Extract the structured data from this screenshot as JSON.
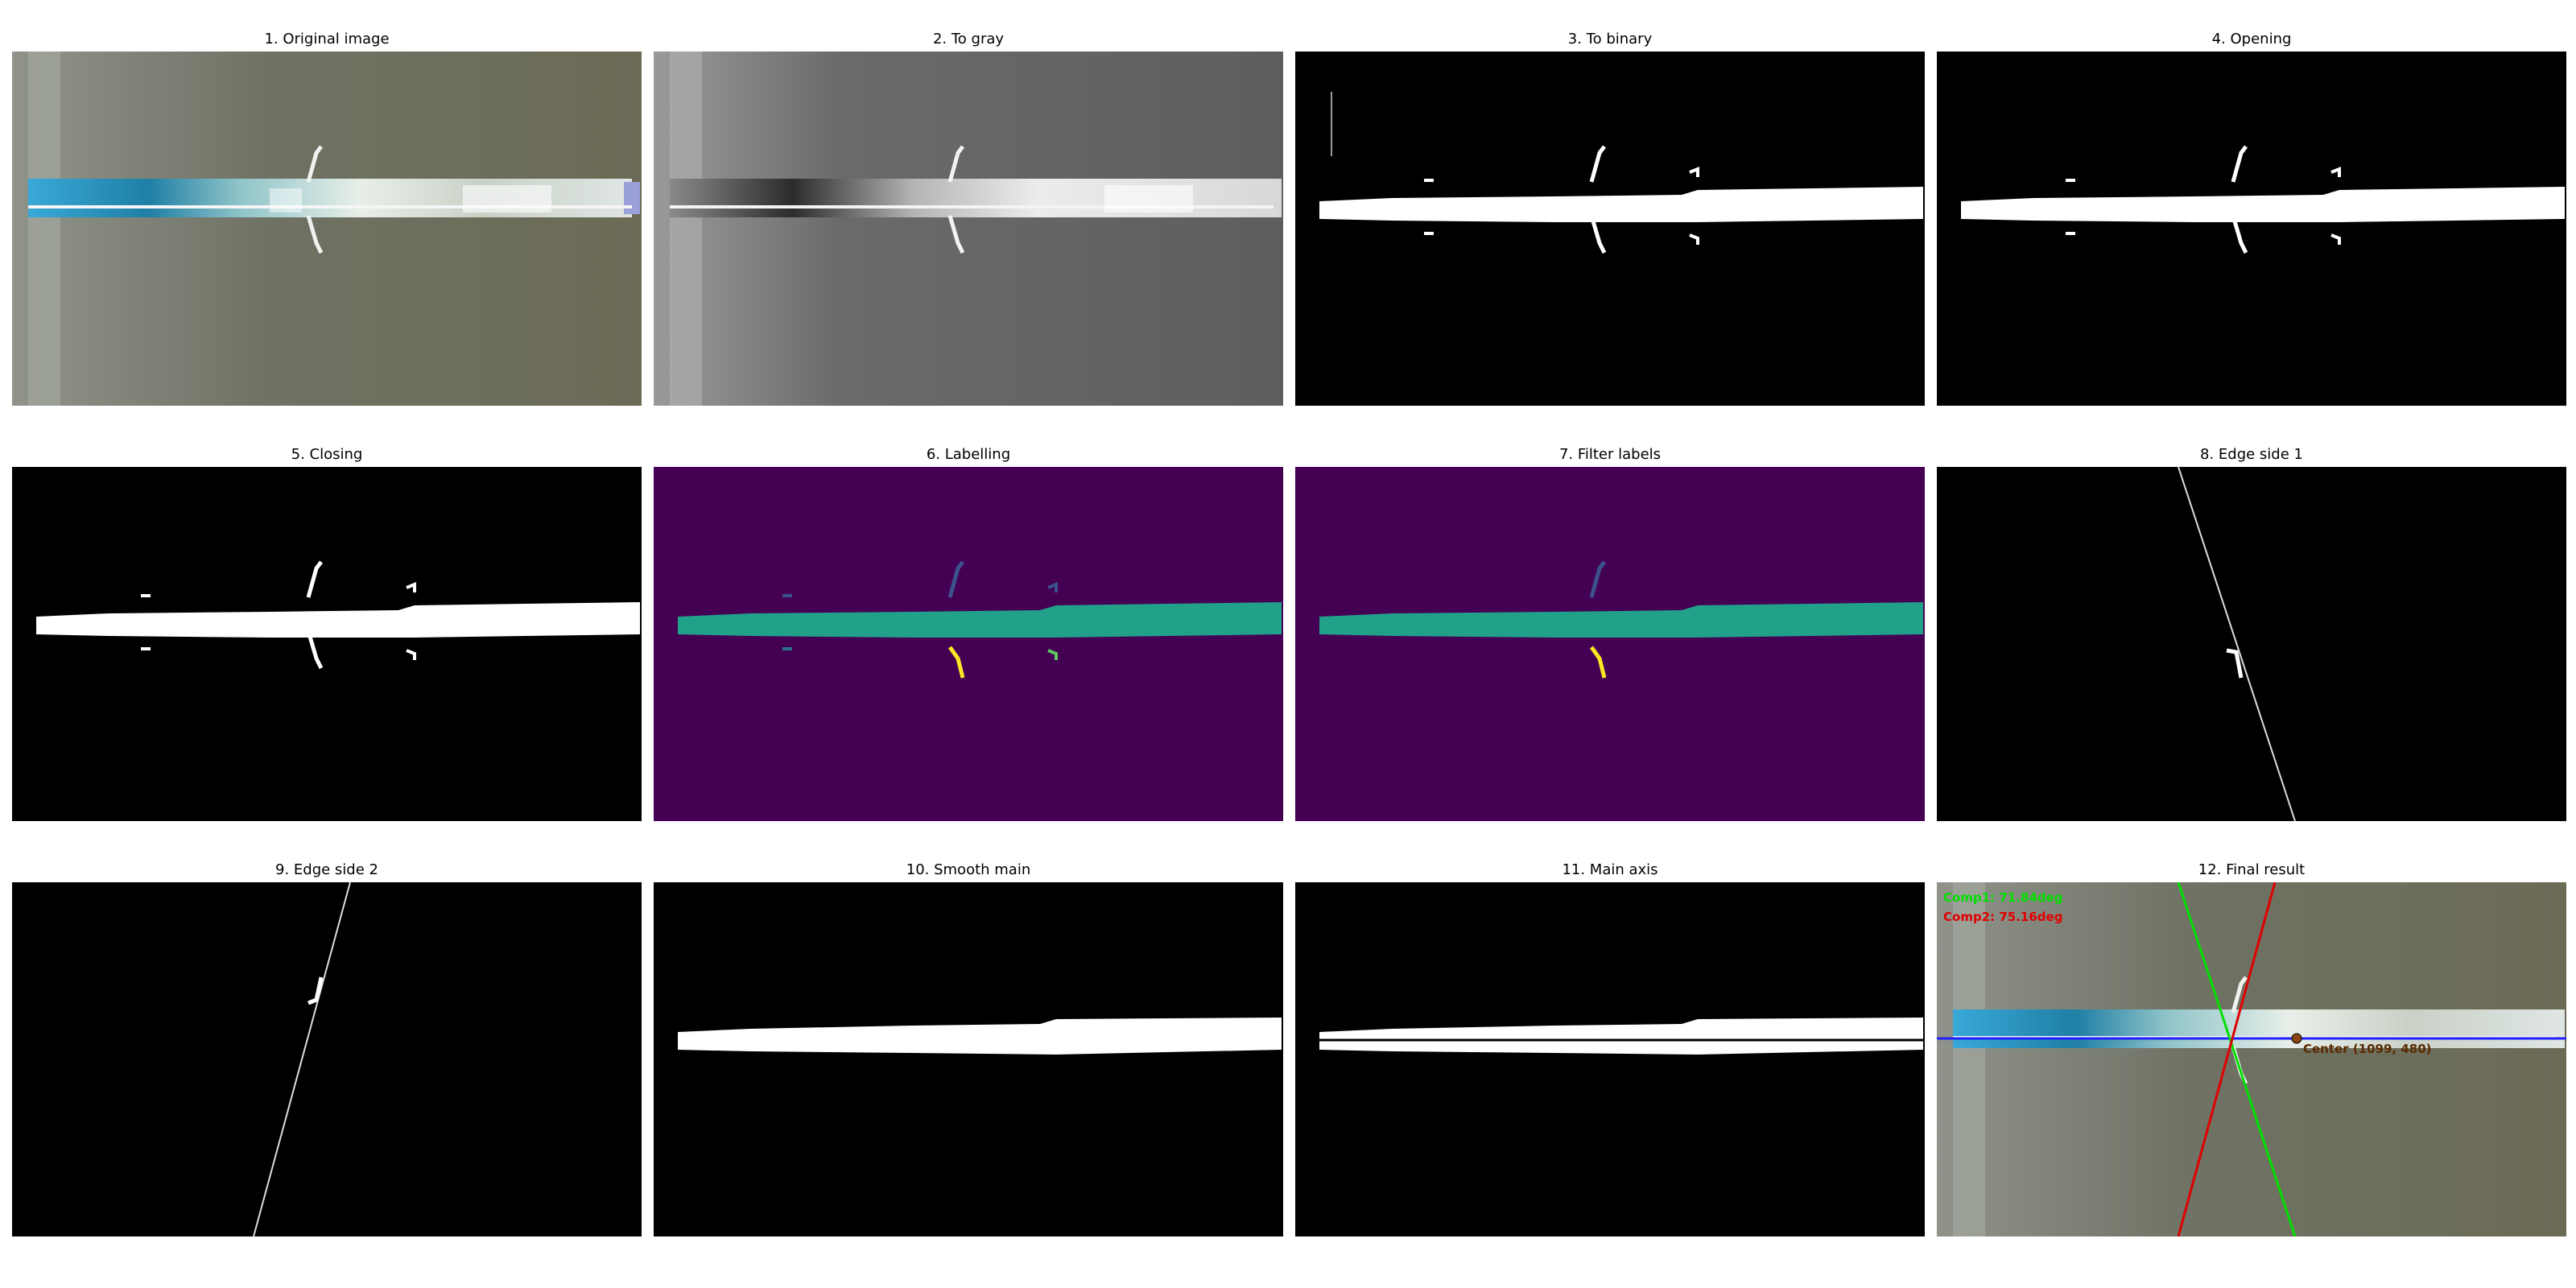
{
  "figure": {
    "panels": [
      {
        "title": "1. Original image"
      },
      {
        "title": "2. To gray"
      },
      {
        "title": "3. To binary"
      },
      {
        "title": "4. Opening"
      },
      {
        "title": "5. Closing"
      },
      {
        "title": "6. Labelling"
      },
      {
        "title": "7. Filter labels"
      },
      {
        "title": "8. Edge side 1"
      },
      {
        "title": "9. Edge side 2"
      },
      {
        "title": "10. Smooth main"
      },
      {
        "title": "11. Main axis"
      },
      {
        "title": "12. Final result"
      }
    ],
    "final_result": {
      "comp1_label": "Comp1: 71.84deg",
      "comp2_label": "Comp2: 75.16deg",
      "center_label": "Center (1099, 480)",
      "comp1_color": "#00e000",
      "comp2_color": "#e00000",
      "axis_color": "#2020ff",
      "center_color": "#8b4513"
    },
    "colors": {
      "label_background": "#440154",
      "label_main": "#21a08a",
      "label_small": "#3b528b",
      "label_yellow": "#fde725",
      "label_teal_light": "#2c728e",
      "label_green": "#5ec962"
    }
  }
}
